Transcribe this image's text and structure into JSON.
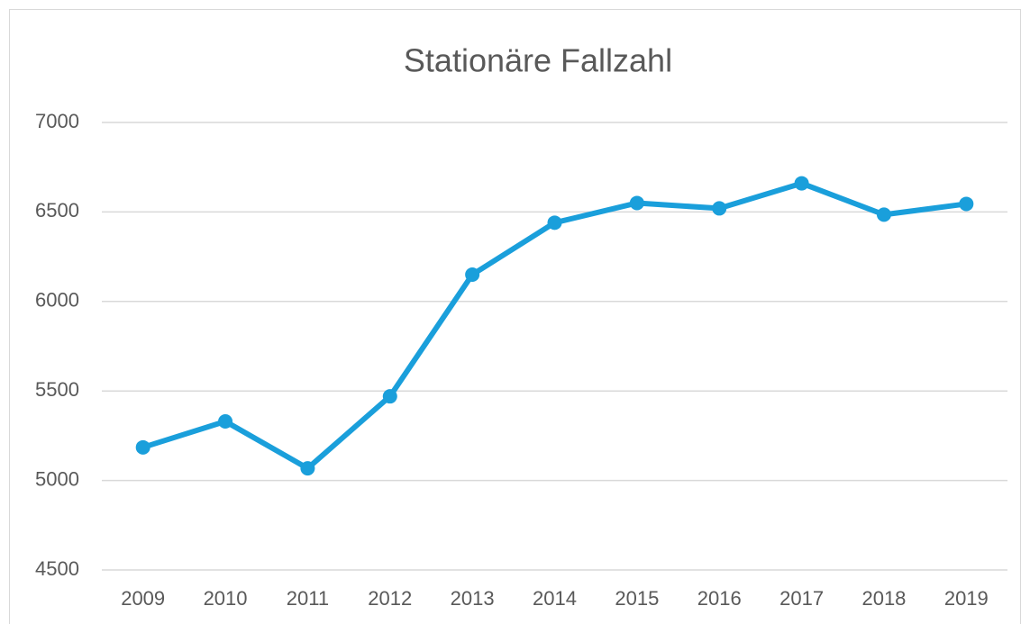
{
  "chart_data": {
    "type": "line",
    "title": "Stationäre Fallzahl",
    "categories": [
      "2009",
      "2010",
      "2011",
      "2012",
      "2013",
      "2014",
      "2015",
      "2016",
      "2017",
      "2018",
      "2019"
    ],
    "series": [
      {
        "name": "Stationäre Fallzahl",
        "color": "#1a9fdb",
        "values": [
          5185,
          5330,
          5068,
          5470,
          6150,
          6440,
          6550,
          6520,
          6660,
          6485,
          6545
        ]
      }
    ],
    "ylim": [
      4500,
      7000
    ],
    "yticks": [
      4500,
      5000,
      5500,
      6000,
      6500,
      7000
    ],
    "grid": true
  }
}
